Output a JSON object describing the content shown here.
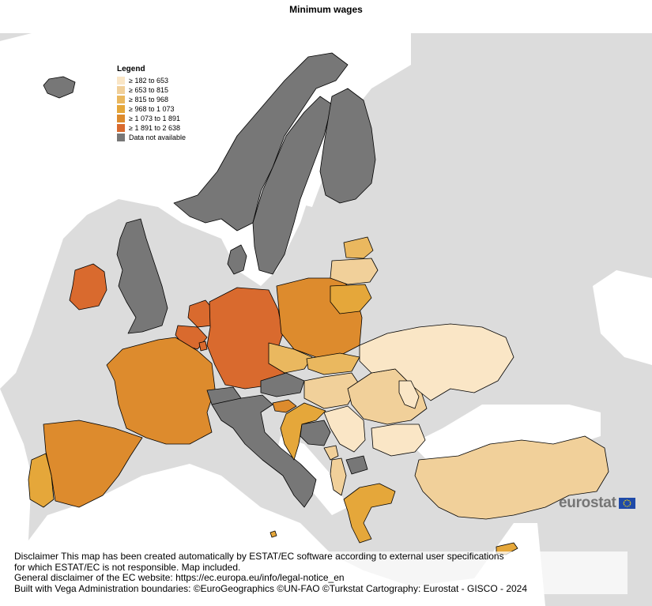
{
  "title": "Minimum wages",
  "legend": {
    "title": "Legend",
    "items": [
      {
        "label": "≥ 182 to 653",
        "color": "#fae6c6"
      },
      {
        "label": "≥ 653 to 815",
        "color": "#f1d09a"
      },
      {
        "label": "≥ 815 to 968",
        "color": "#eab85f"
      },
      {
        "label": "≥ 968 to 1 073",
        "color": "#e5a73a"
      },
      {
        "label": "≥ 1 073 to 1 891",
        "color": "#dd8b2d"
      },
      {
        "label": "≥ 1 891 to 2 638",
        "color": "#d96a2e"
      },
      {
        "label": "Data not available",
        "color": "#777777"
      }
    ]
  },
  "colors": {
    "background_land": "#dcdcdc",
    "non_eu": "#ffffff",
    "borders": "#000000"
  },
  "regions": [
    {
      "name": "Iceland",
      "class": "Data not available"
    },
    {
      "name": "Norway",
      "class": "Data not available"
    },
    {
      "name": "Sweden",
      "class": "Data not available"
    },
    {
      "name": "Finland",
      "class": "Data not available"
    },
    {
      "name": "Denmark",
      "class": "Data not available"
    },
    {
      "name": "United Kingdom",
      "class": "Data not available"
    },
    {
      "name": "Ireland",
      "class": "≥ 1 891 to 2 638"
    },
    {
      "name": "Netherlands",
      "class": "≥ 1 891 to 2 638"
    },
    {
      "name": "Belgium",
      "class": "≥ 1 891 to 2 638"
    },
    {
      "name": "Luxembourg",
      "class": "≥ 1 891 to 2 638"
    },
    {
      "name": "Germany",
      "class": "≥ 1 891 to 2 638"
    },
    {
      "name": "France",
      "class": "≥ 1 073 to 1 891"
    },
    {
      "name": "Spain",
      "class": "≥ 1 073 to 1 891"
    },
    {
      "name": "Portugal",
      "class": "≥ 968 to 1 073"
    },
    {
      "name": "Switzerland",
      "class": "Data not available"
    },
    {
      "name": "Austria",
      "class": "Data not available"
    },
    {
      "name": "Italy",
      "class": "Data not available"
    },
    {
      "name": "Poland",
      "class": "≥ 1 073 to 1 891"
    },
    {
      "name": "Czechia",
      "class": "≥ 815 to 968"
    },
    {
      "name": "Slovakia",
      "class": "≥ 815 to 968"
    },
    {
      "name": "Hungary",
      "class": "≥ 653 to 815"
    },
    {
      "name": "Slovenia",
      "class": "≥ 1 073 to 1 891"
    },
    {
      "name": "Croatia",
      "class": "≥ 968 to 1 073"
    },
    {
      "name": "Romania",
      "class": "≥ 653 to 815"
    },
    {
      "name": "Bulgaria",
      "class": "≥ 182 to 653"
    },
    {
      "name": "Serbia",
      "class": "≥ 182 to 653"
    },
    {
      "name": "Bosnia and Herzegovina",
      "class": "Data not available"
    },
    {
      "name": "Montenegro",
      "class": "≥ 653 to 815"
    },
    {
      "name": "Albania",
      "class": "≥ 653 to 815"
    },
    {
      "name": "North Macedonia",
      "class": "Data not available"
    },
    {
      "name": "Greece",
      "class": "≥ 968 to 1 073"
    },
    {
      "name": "Türkiye",
      "class": "≥ 653 to 815"
    },
    {
      "name": "Estonia",
      "class": "≥ 815 to 968"
    },
    {
      "name": "Latvia",
      "class": "≥ 653 to 815"
    },
    {
      "name": "Lithuania",
      "class": "≥ 968 to 1 073"
    },
    {
      "name": "Ukraine",
      "class": "≥ 182 to 653"
    },
    {
      "name": "Moldova",
      "class": "≥ 182 to 653"
    },
    {
      "name": "Cyprus",
      "class": "≥ 968 to 1 073"
    },
    {
      "name": "Malta",
      "class": "≥ 968 to 1 073"
    }
  ],
  "logo": {
    "text": "eurostat"
  },
  "disclaimer": {
    "line1": "Disclaimer This map has been created automatically by ESTAT/EC software according to external user specifications",
    "line2": "for which ESTAT/EC is not responsible. Map included.",
    "line3": "General disclaimer of the EC website: https://ec.europa.eu/info/legal-notice_en",
    "line4": "Built with Vega Administration boundaries: ©EuroGeographics ©UN-FAO ©Turkstat Cartography: Eurostat - GISCO - 2024"
  }
}
